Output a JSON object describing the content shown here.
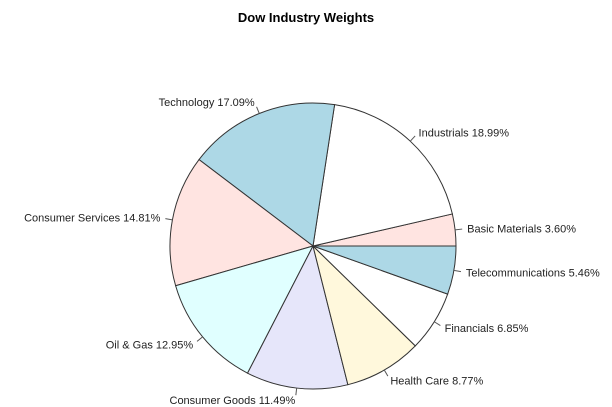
{
  "chart_data": {
    "type": "pie",
    "title": "Dow Industry Weights",
    "slices": [
      {
        "label": "Basic Materials 3.60%",
        "value": 3.6,
        "color": "#ffe4e1"
      },
      {
        "label": "Industrials 18.99%",
        "value": 18.99,
        "color": "#ffffff"
      },
      {
        "label": "Technology 17.09%",
        "value": 17.09,
        "color": "#add8e6"
      },
      {
        "label": "Consumer Services 14.81%",
        "value": 14.81,
        "color": "#ffe4e1"
      },
      {
        "label": "Oil & Gas 12.95%",
        "value": 12.95,
        "color": "#e0ffff"
      },
      {
        "label": "Consumer Goods 11.49%",
        "value": 11.49,
        "color": "#e6e6fa"
      },
      {
        "label": "Health Care 8.77%",
        "value": 8.77,
        "color": "#fff8dc"
      },
      {
        "label": "Financials 6.85%",
        "value": 6.85,
        "color": "#ffffff"
      },
      {
        "label": "Telecommunications 5.46%",
        "value": 5.46,
        "color": "#add8e6"
      }
    ],
    "start": "3 o'clock",
    "direction": "counterclockwise",
    "legend": "none"
  }
}
